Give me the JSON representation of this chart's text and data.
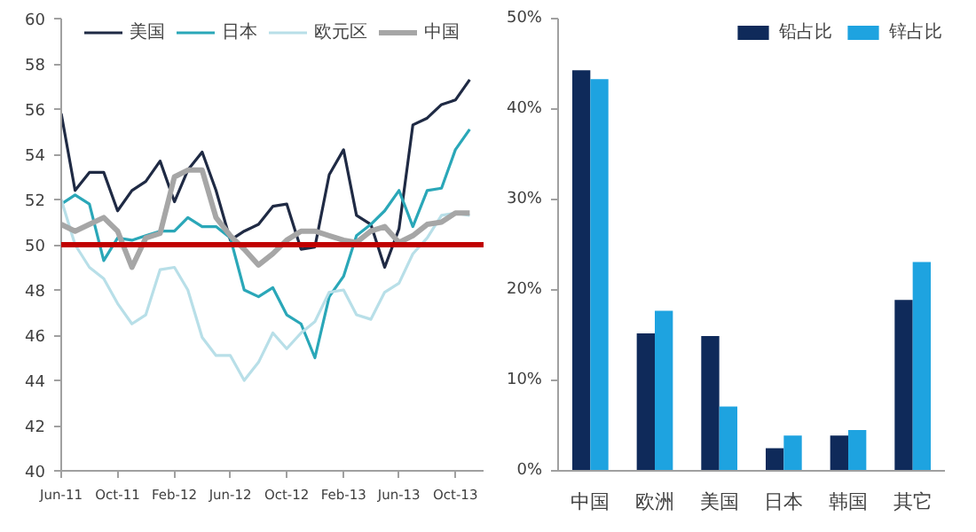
{
  "chart_data": [
    {
      "type": "line",
      "x": [
        "2011-06",
        "2011-07",
        "2011-08",
        "2011-09",
        "2011-10",
        "2011-11",
        "2011-12",
        "2012-01",
        "2012-02",
        "2012-03",
        "2012-04",
        "2012-05",
        "2012-06",
        "2012-07",
        "2012-08",
        "2012-09",
        "2012-10",
        "2012-11",
        "2012-12",
        "2013-01",
        "2013-02",
        "2013-03",
        "2013-04",
        "2013-05",
        "2013-06",
        "2013-07",
        "2013-08",
        "2013-09",
        "2013-10",
        "2013-11"
      ],
      "series": [
        {
          "name": "美国",
          "color": "#1f2a44",
          "values": [
            55.8,
            52.4,
            53.2,
            53.2,
            51.5,
            52.4,
            52.8,
            53.7,
            51.9,
            53.3,
            54.1,
            52.4,
            50.2,
            50.6,
            50.9,
            51.7,
            51.8,
            49.8,
            49.9,
            53.1,
            54.2,
            51.3,
            50.9,
            49.0,
            50.7,
            55.3,
            55.6,
            56.2,
            56.4,
            57.3
          ]
        },
        {
          "name": "日本",
          "color": "#2aa7b8",
          "values": [
            51.8,
            52.2,
            51.8,
            49.3,
            50.3,
            50.2,
            50.4,
            50.6,
            50.6,
            51.2,
            50.8,
            50.8,
            50.3,
            48.0,
            47.7,
            48.1,
            46.9,
            46.5,
            45.0,
            47.7,
            48.6,
            50.4,
            50.9,
            51.5,
            52.4,
            50.8,
            52.4,
            52.5,
            54.2,
            55.1
          ]
        },
        {
          "name": "欧元区",
          "color": "#b8dfe8",
          "values": [
            52.0,
            50.0,
            49.0,
            48.5,
            47.4,
            46.5,
            46.9,
            48.9,
            49.0,
            48.0,
            45.9,
            45.1,
            45.1,
            44.0,
            44.8,
            46.1,
            45.4,
            46.1,
            46.6,
            47.9,
            48.0,
            46.9,
            46.7,
            47.9,
            48.3,
            49.6,
            50.3,
            51.3,
            51.4,
            51.3
          ]
        },
        {
          "name": "中国",
          "color": "#a6a6a6",
          "values": [
            50.9,
            50.6,
            50.9,
            51.2,
            50.6,
            49.0,
            50.3,
            50.5,
            53.0,
            53.3,
            53.3,
            51.2,
            50.4,
            49.8,
            49.1,
            49.6,
            50.2,
            50.6,
            50.6,
            50.4,
            50.2,
            50.1,
            50.6,
            50.8,
            50.1,
            50.4,
            50.9,
            51.0,
            51.4,
            51.4
          ]
        }
      ],
      "xlim": [
        "2011-06",
        "2013-12"
      ],
      "xticks": [
        {
          "value": "2011-06",
          "label": "Jun-11"
        },
        {
          "value": "2011-10",
          "label": "Oct-11"
        },
        {
          "value": "2012-02",
          "label": "Feb-12"
        },
        {
          "value": "2012-06",
          "label": "Jun-12"
        },
        {
          "value": "2012-10",
          "label": "Oct-12"
        },
        {
          "value": "2013-02",
          "label": "Feb-13"
        },
        {
          "value": "2013-06",
          "label": "Jun-13"
        },
        {
          "value": "2013-10",
          "label": "Oct-13"
        }
      ],
      "ylim": [
        40,
        60
      ],
      "yticks": [
        40,
        42,
        44,
        46,
        48,
        50,
        52,
        54,
        56,
        58,
        60
      ],
      "ref_lines": [
        {
          "axis": "y",
          "value": 50,
          "color": "#c00000"
        }
      ],
      "legend": "top",
      "grid": false
    },
    {
      "type": "bar",
      "categories": [
        "中国",
        "欧洲",
        "美国",
        "日本",
        "韩国",
        "其它"
      ],
      "series": [
        {
          "name": "铅占比",
          "color": "#0f2a5a",
          "values": [
            44.3,
            15.2,
            14.9,
            2.5,
            3.9,
            18.9
          ]
        },
        {
          "name": "锌占比",
          "color": "#1ea3e0",
          "values": [
            43.3,
            17.7,
            7.1,
            3.9,
            4.5,
            23.1
          ]
        }
      ],
      "ylim": [
        0,
        50
      ],
      "yticks": [
        {
          "value": 0,
          "label": "0%"
        },
        {
          "value": 10,
          "label": "10%"
        },
        {
          "value": 20,
          "label": "20%"
        },
        {
          "value": 30,
          "label": "30%"
        },
        {
          "value": 40,
          "label": "40%"
        },
        {
          "value": 50,
          "label": "50%"
        }
      ],
      "legend": "top right",
      "grid": false
    }
  ]
}
